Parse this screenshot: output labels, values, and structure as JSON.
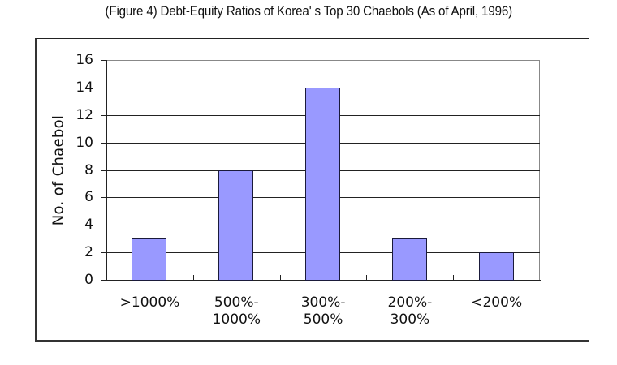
{
  "title": "(Figure 4)  Debt-Equity Ratios of Korea' s Top 30 Chaebols (As of April, 1996)",
  "colors": {
    "bar_fill": "#9999ff",
    "bar_border": "#1a1a3a",
    "axis": "#222222"
  },
  "chart_data": {
    "type": "bar",
    "title": "(Figure 4) Debt-Equity Ratios of Korea's Top 30 Chaebols (As of April, 1996)",
    "categories": [
      ">1000%",
      "500%-1000%",
      "300%-500%",
      "200%-300%",
      "<200%"
    ],
    "category_lines": [
      [
        ">1000%"
      ],
      [
        "500%-",
        "1000%"
      ],
      [
        "300%-",
        "500%"
      ],
      [
        "200%-",
        "300%"
      ],
      [
        "<200%"
      ]
    ],
    "values": [
      3,
      8,
      14,
      3,
      2
    ],
    "xlabel": "",
    "ylabel": "No. of Chaebol",
    "ylim": [
      0,
      16
    ],
    "yticks": [
      0,
      2,
      4,
      6,
      8,
      10,
      12,
      14,
      16
    ],
    "grid": true,
    "legend": null
  }
}
